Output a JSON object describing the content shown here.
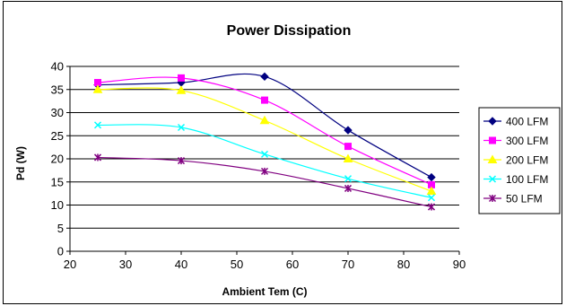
{
  "chart_data": {
    "type": "line",
    "title": "Power Dissipation",
    "xlabel": "Ambient Tem (C)",
    "ylabel": "Pd (W)",
    "xlim": [
      20,
      90
    ],
    "ylim": [
      0,
      40
    ],
    "xticks": [
      20,
      30,
      40,
      50,
      60,
      70,
      80,
      90
    ],
    "yticks": [
      0,
      5,
      10,
      15,
      20,
      25,
      30,
      35,
      40
    ],
    "grid": "horizontal",
    "legend": "right",
    "x": [
      25,
      40,
      55,
      70,
      85
    ],
    "series": [
      {
        "name": "400 LFM",
        "values": [
          36.0,
          36.5,
          37.8,
          26.2,
          16.0
        ],
        "color": "#000080",
        "marker": "diamond"
      },
      {
        "name": "300 LFM",
        "values": [
          36.5,
          37.5,
          32.7,
          22.7,
          14.4
        ],
        "color": "#FF00FF",
        "marker": "square"
      },
      {
        "name": "200 LFM",
        "values": [
          35.0,
          34.8,
          28.3,
          20.0,
          13.0
        ],
        "color": "#FFFF00",
        "marker": "triangle"
      },
      {
        "name": "100 LFM",
        "values": [
          27.3,
          26.8,
          21.0,
          15.7,
          11.6
        ],
        "color": "#00FFFF",
        "marker": "x"
      },
      {
        "name": "50 LFM",
        "values": [
          20.3,
          19.6,
          17.3,
          13.6,
          9.6
        ],
        "color": "#800080",
        "marker": "star"
      }
    ]
  }
}
